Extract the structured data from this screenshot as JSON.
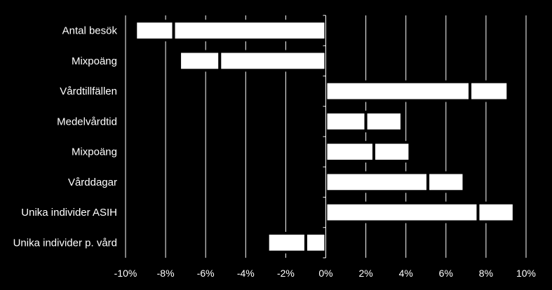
{
  "chart_data": {
    "type": "bar",
    "orientation": "horizontal",
    "stacked": true,
    "categories": [
      "Antal besök",
      "Mixpoäng",
      "Vårdtillfällen",
      "Medelvårdtid",
      "Mixpoäng",
      "Vårddagar",
      "Unika individer ASIH",
      "Unika individer p. vård"
    ],
    "series": [
      {
        "values": [
          -7.6,
          -5.3,
          7.2,
          2.0,
          2.4,
          5.1,
          7.6,
          -1.0
        ]
      },
      {
        "values": [
          -1.9,
          -2.0,
          1.9,
          1.8,
          1.8,
          1.8,
          1.8,
          -1.9
        ]
      }
    ],
    "xlim": [
      -10,
      10
    ],
    "xticks": [
      "-10%",
      "-8%",
      "-6%",
      "-4%",
      "-2%",
      "0%",
      "2%",
      "4%",
      "6%",
      "8%",
      "10%"
    ],
    "xtick_values": [
      -10,
      -8,
      -6,
      -4,
      -2,
      0,
      2,
      4,
      6,
      8,
      10
    ],
    "grid": "vertical",
    "legend": "none",
    "colors": {
      "background": "#000000",
      "bar_fill": "#ffffff",
      "bar_stroke": "#000000",
      "grid": "#ffffff",
      "axis": "#ffffff",
      "text": "#ffffff"
    }
  }
}
